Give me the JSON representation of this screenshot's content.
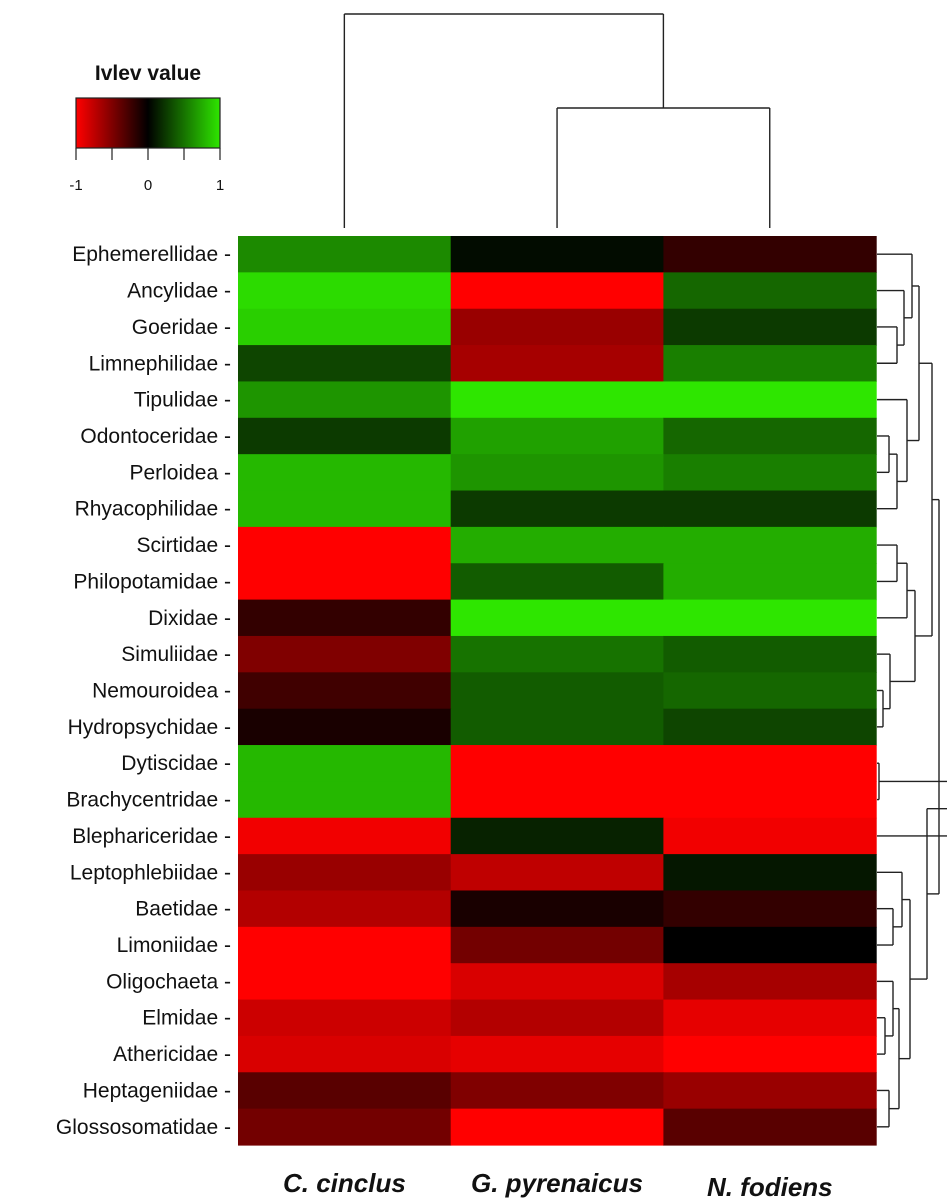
{
  "chart_data": {
    "type": "heatmap",
    "title": "",
    "legend": {
      "title": "Ivlev value",
      "min": -1,
      "max": 1,
      "ticks": [
        -1,
        0,
        1
      ],
      "tick_labels": [
        "-1",
        "0",
        "1"
      ],
      "colors": {
        "low": "#ff0000",
        "mid": "#000000",
        "high": "#2ee600"
      },
      "placement": "top-left"
    },
    "columns": [
      "C. cinclus",
      "G. pyrenaicus",
      "N. fodiens"
    ],
    "rows": [
      "Ephemerellidae",
      "Ancylidae",
      "Goeridae",
      "Limnephilidae",
      "Tipulidae",
      "Odontoceridae",
      "Perloidea",
      "Rhyacophilidae",
      "Scirtidae",
      "Philopotamidae",
      "Dixidae",
      "Simuliidae",
      "Nemouroidea",
      "Hydropsychidae",
      "Dytiscidae",
      "Brachycentridae",
      "Blephariceridae",
      "Leptophlebiidae",
      "Baetidae",
      "Limoniidae",
      "Oligochaeta",
      "Elmidae",
      "Athericidae",
      "Heptageniidae",
      "Glossosomatidae"
    ],
    "values": [
      [
        0.6,
        0.05,
        -0.2
      ],
      [
        0.95,
        -1.0,
        0.45
      ],
      [
        0.9,
        -0.6,
        0.25
      ],
      [
        0.3,
        -0.65,
        0.55
      ],
      [
        0.65,
        1.0,
        1.0
      ],
      [
        0.25,
        0.7,
        0.45
      ],
      [
        0.8,
        0.65,
        0.55
      ],
      [
        0.8,
        0.25,
        0.25
      ],
      [
        -1.0,
        0.75,
        0.75
      ],
      [
        -1.0,
        0.4,
        0.75
      ],
      [
        -0.2,
        1.0,
        1.0
      ],
      [
        -0.5,
        0.5,
        0.4
      ],
      [
        -0.25,
        0.4,
        0.45
      ],
      [
        -0.1,
        0.4,
        0.3
      ],
      [
        0.8,
        -1.0,
        -1.0
      ],
      [
        0.8,
        -1.0,
        -1.0
      ],
      [
        -0.95,
        0.15,
        -0.95
      ],
      [
        -0.6,
        -0.75,
        0.1
      ],
      [
        -0.7,
        -0.1,
        -0.2
      ],
      [
        -1.0,
        -0.45,
        0.0
      ],
      [
        -1.0,
        -0.85,
        -0.65
      ],
      [
        -0.8,
        -0.7,
        -0.9
      ],
      [
        -0.85,
        -0.9,
        -1.0
      ],
      [
        -0.35,
        -0.5,
        -0.6
      ],
      [
        -0.45,
        -1.0,
        -0.35
      ]
    ],
    "row_dendrogram": true,
    "column_dendrogram": true
  }
}
